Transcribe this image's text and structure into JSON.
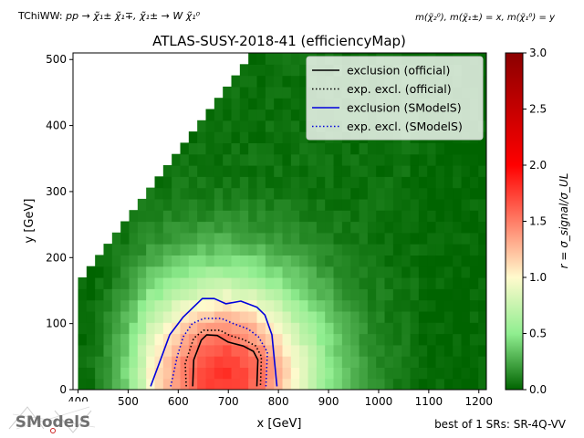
{
  "header": {
    "process_prefix": "TChiWW: ",
    "process_formula": "pp → χ̃₁± χ̃₁∓, χ̃₁± → W χ̃₁⁰",
    "mass_relation": "m(χ̃₂⁰), m(χ̃₁±) = x, m(χ̃₁⁰) = y"
  },
  "footer": {
    "best_sr": "best of 1 SRs: SR-4Q-VV",
    "logo_text": "SModelS"
  },
  "colors": {
    "official": "#000000",
    "smodels": "#0000dd",
    "legend_bg": "#ffffff"
  },
  "chart_data": {
    "type": "heatmap",
    "title": "ATLAS-SUSY-2018-41 (efficiencyMap)",
    "xlabel": "x [GeV]",
    "ylabel": "y [GeV]",
    "xlim": [
      390,
      1215
    ],
    "ylim": [
      0,
      510
    ],
    "xticks": [
      400,
      500,
      600,
      700,
      800,
      900,
      1000,
      1100,
      1200
    ],
    "yticks": [
      0,
      100,
      200,
      300,
      400,
      500
    ],
    "grid": false,
    "legend_position": "top-right",
    "colorbar": {
      "label": "r = σ_signal/σ_UL",
      "range": [
        0.0,
        3.0
      ],
      "ticks": [
        0.0,
        0.5,
        1.0,
        1.5,
        2.0,
        2.5,
        3.0
      ],
      "colors": [
        "#006400",
        "#90ee90",
        "#fffacd",
        "#ff0000",
        "#8b0000"
      ]
    },
    "heatmap": {
      "cell_size": [
        17,
        17
      ],
      "coverage_x_min": 400,
      "coverage_x_max": 1215,
      "diagonal_offset": 245,
      "max_y": 510,
      "peak_center": [
        690,
        20
      ],
      "peak_value": 1.75
    },
    "series": [
      {
        "name": "exclusion (official)",
        "style": "solid",
        "color": "#000000",
        "points": [
          [
            629,
            5
          ],
          [
            631,
            45
          ],
          [
            646,
            75
          ],
          [
            657,
            83
          ],
          [
            678,
            82
          ],
          [
            700,
            72
          ],
          [
            730,
            66
          ],
          [
            750,
            58
          ],
          [
            759,
            45
          ],
          [
            757,
            5
          ]
        ]
      },
      {
        "name": "exp. excl. (official)",
        "style": "dotted",
        "color": "#000000",
        "points": [
          [
            616,
            5
          ],
          [
            614,
            40
          ],
          [
            631,
            78
          ],
          [
            651,
            90
          ],
          [
            683,
            90
          ],
          [
            703,
            82
          ],
          [
            730,
            76
          ],
          [
            755,
            66
          ],
          [
            766,
            50
          ],
          [
            764,
            5
          ]
        ]
      },
      {
        "name": "exclusion (SModelS)",
        "style": "solid",
        "color": "#0000dd",
        "points": [
          [
            545,
            5
          ],
          [
            567,
            50
          ],
          [
            583,
            83
          ],
          [
            610,
            110
          ],
          [
            648,
            138
          ],
          [
            672,
            138
          ],
          [
            695,
            130
          ],
          [
            725,
            134
          ],
          [
            757,
            125
          ],
          [
            773,
            113
          ],
          [
            787,
            83
          ],
          [
            797,
            5
          ]
        ]
      },
      {
        "name": "exp. excl. (SModelS)",
        "style": "dotted",
        "color": "#0000dd",
        "points": [
          [
            585,
            5
          ],
          [
            598,
            50
          ],
          [
            610,
            80
          ],
          [
            628,
            100
          ],
          [
            651,
            108
          ],
          [
            686,
            108
          ],
          [
            710,
            100
          ],
          [
            739,
            92
          ],
          [
            760,
            80
          ],
          [
            778,
            57
          ],
          [
            775,
            5
          ]
        ]
      }
    ]
  }
}
